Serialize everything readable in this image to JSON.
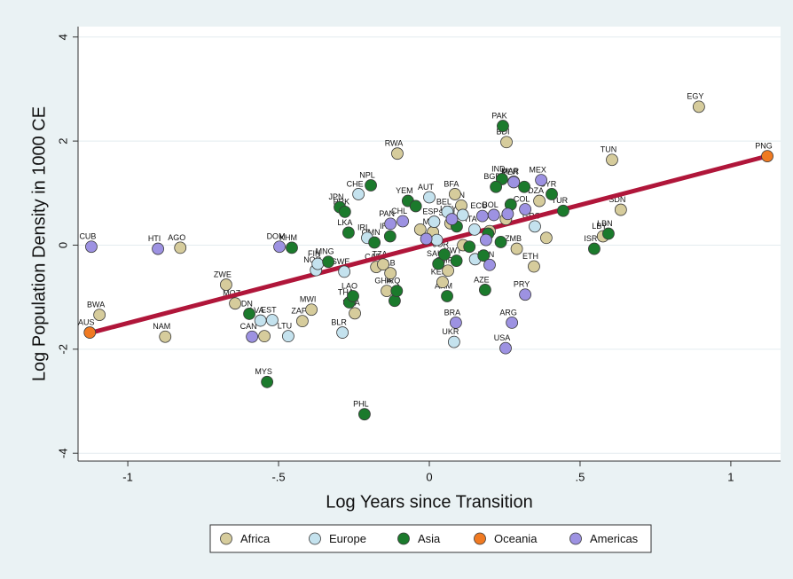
{
  "chart_data": {
    "type": "scatter",
    "x_label": "Log Years since Transition",
    "y_label": "Log Population Density in 1000 CE",
    "xlim": [
      -1.165,
      1.165
    ],
    "ylim": [
      -4.15,
      4.2
    ],
    "xticks": [
      -1,
      {
        "value": -0.5,
        "label": "-.5"
      },
      0,
      {
        "value": 0.5,
        "label": ".5"
      },
      1
    ],
    "yticks": [
      -4,
      -2,
      0,
      2,
      4
    ],
    "grid": true,
    "legend": "bottom",
    "fit_line": {
      "x": [
        -1.12,
        1.12
      ],
      "y": [
        -1.68,
        1.71
      ],
      "color": "#b0163a"
    },
    "series": [
      {
        "name": "Africa",
        "color": "#d6cc9c",
        "x": [
          0.894,
          0.606,
          0.635,
          0.576,
          0.256,
          -0.106,
          0.085,
          0.365,
          0.28,
          0.347,
          0.29,
          -0.674,
          -0.644,
          -1.094,
          -0.876,
          -0.826,
          -0.421,
          -0.391,
          -0.247,
          -0.547,
          0.062,
          -0.141,
          0.044,
          -0.176,
          -0.153,
          -0.129,
          0.012,
          0.106,
          0.07,
          0.388,
          0.112,
          0.2,
          0.254,
          -0.03
        ],
        "y": [
          2.66,
          1.64,
          0.68,
          0.17,
          1.98,
          1.76,
          0.98,
          0.85,
          1.22,
          -0.41,
          -0.07,
          -0.76,
          -1.12,
          -1.34,
          -1.76,
          -0.05,
          -1.46,
          -1.24,
          -1.31,
          -1.75,
          -0.49,
          -0.88,
          -0.71,
          -0.42,
          -0.37,
          -0.54,
          0.25,
          0.76,
          0.42,
          0.14,
          0.0,
          0.27,
          0.5,
          0.3
        ],
        "labels": [
          "EGY",
          "TUN",
          "SDN",
          "LBY",
          "BDI",
          "RWA",
          "BFA",
          "DZA",
          "MAR",
          "ETH",
          "ZMB",
          "ZWE",
          "MOZ",
          "BWA",
          "NAM",
          "AGO",
          "ZAF",
          "MWI",
          "UGA",
          null,
          "CMR",
          "GHA",
          "KEN",
          "CAF",
          "TZA",
          "GAB",
          "MLI",
          "GIN",
          "SEN",
          null,
          null,
          null,
          null,
          null
        ]
      },
      {
        "name": "Europe",
        "color": "#c4e2ee",
        "x": [
          -0.235,
          -0.206,
          -0.282,
          -0.376,
          -0.521,
          -0.468,
          -0.288,
          0.082,
          0.0,
          0.06,
          0.35,
          0.15,
          -0.56,
          -0.37,
          0.016,
          0.152,
          0.111,
          0.025
        ],
        "y": [
          0.98,
          0.14,
          -0.51,
          -0.48,
          -1.44,
          -1.75,
          -1.68,
          -1.86,
          0.92,
          0.64,
          0.36,
          0.3,
          -1.45,
          -0.36,
          0.45,
          -0.27,
          0.58,
          0.1
        ],
        "labels": [
          "CHE",
          "IRL",
          "SWE",
          "NOR",
          "EST",
          "LTU",
          "BLR",
          "UKR",
          "AUT",
          "BEL",
          "GRC",
          "ITA",
          "LVA",
          "FIN",
          "ESP",
          null,
          null,
          null
        ]
      },
      {
        "name": "Asia",
        "color": "#1b7a2c",
        "x": [
          0.244,
          0.241,
          -0.194,
          -0.215,
          -0.538,
          -0.456,
          -0.597,
          -0.265,
          -0.253,
          -0.268,
          -0.297,
          -0.28,
          -0.335,
          0.059,
          0.185,
          0.547,
          0.594,
          0.444,
          0.406,
          -0.071,
          -0.182,
          -0.115,
          -0.108,
          -0.13,
          0.221,
          0.03,
          0.09,
          0.05,
          0.133,
          0.18,
          0.237,
          0.27,
          0.315,
          0.195,
          -0.045,
          0.091
        ],
        "y": [
          2.29,
          1.27,
          1.15,
          -3.25,
          -2.63,
          -0.05,
          -1.32,
          -1.1,
          -0.98,
          0.24,
          0.73,
          0.64,
          -0.32,
          -0.98,
          -0.86,
          -0.07,
          0.22,
          0.66,
          0.98,
          0.85,
          0.05,
          -1.07,
          -0.88,
          0.17,
          1.12,
          -0.36,
          -0.3,
          -0.18,
          -0.03,
          -0.2,
          0.06,
          0.78,
          1.12,
          0.22,
          0.75,
          0.36
        ],
        "labels": [
          "PAK",
          "IND",
          "NPL",
          "PHL",
          "MYS",
          "KHM",
          "IDN",
          "THA",
          "LAO",
          "LKA",
          "JPN",
          "PRK",
          "MNG",
          "ARM",
          "AZE",
          "ISR",
          "LBN",
          "TUR",
          "SYR",
          "YEM",
          "OMN",
          "GEO",
          "IRQ",
          "IRN",
          "BGD",
          "SAU",
          "KWT",
          "JOR",
          null,
          null,
          null,
          null,
          null,
          null,
          null,
          null
        ]
      },
      {
        "name": "Oceania",
        "color": "#f07a22",
        "x": [
          -1.126,
          1.121
        ],
        "y": [
          -1.68,
          1.71
        ],
        "labels": [
          "AUS",
          "PNG"
        ]
      },
      {
        "name": "Americas",
        "color": "#9d92e2",
        "x": [
          -1.121,
          -0.9,
          -0.497,
          0.371,
          0.28,
          0.274,
          0.253,
          0.088,
          -0.588,
          0.318,
          0.318,
          -0.129,
          0.2,
          0.176,
          -0.088,
          0.214,
          0.075,
          -0.01,
          0.188,
          0.26
        ],
        "y": [
          -0.03,
          -0.07,
          -0.03,
          1.25,
          1.21,
          -1.49,
          -1.98,
          -1.49,
          -1.76,
          -0.95,
          0.69,
          0.41,
          -0.38,
          0.56,
          0.46,
          0.58,
          0.5,
          0.12,
          0.1,
          0.6
        ],
        "labels": [
          "CUB",
          "HTI",
          "DOM",
          "MEX",
          "PER",
          "ARG",
          "USA",
          "BRA",
          "CAN",
          "PRY",
          "COL",
          "PAN",
          "VEN",
          "ECU",
          "CHL",
          "BOL",
          "URY",
          null,
          null,
          null
        ]
      }
    ]
  }
}
